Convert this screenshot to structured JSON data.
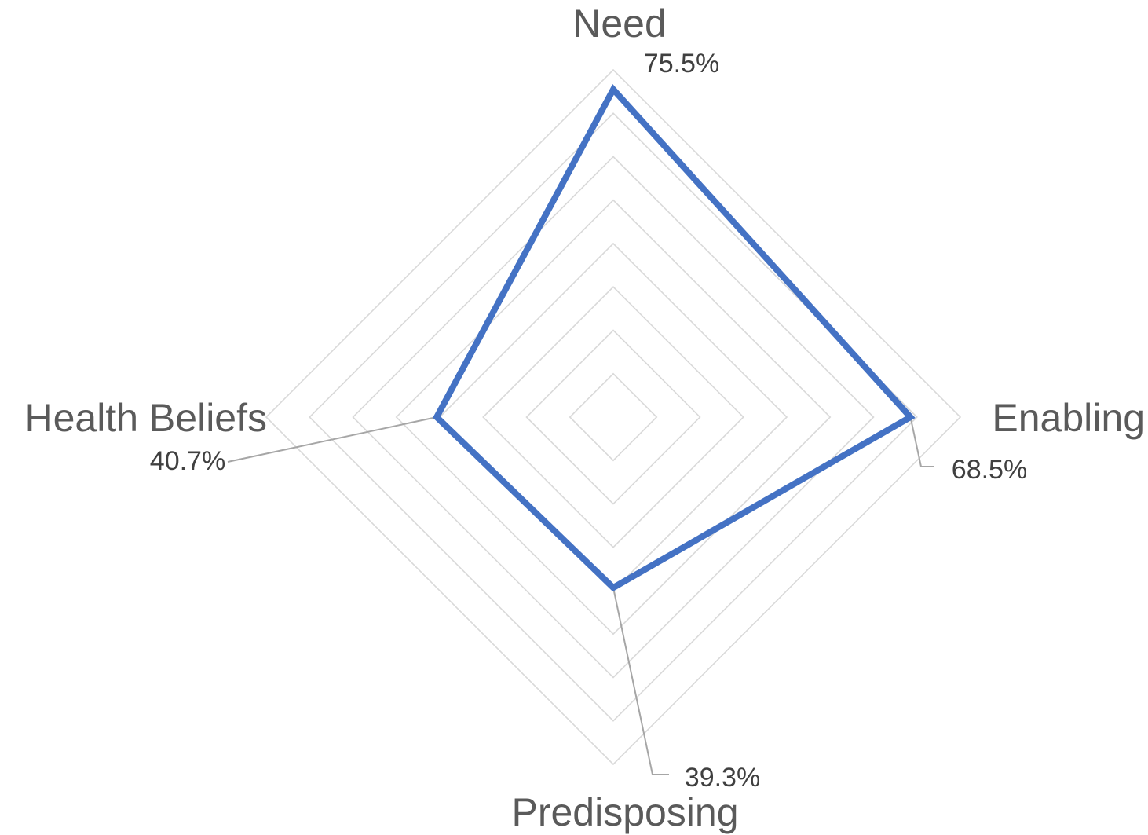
{
  "chart_data": {
    "type": "radar",
    "categories": [
      "Need",
      "Enabling",
      "Predisposing",
      "Health Beliefs"
    ],
    "values": [
      75.5,
      68.5,
      39.3,
      40.7
    ],
    "value_labels": [
      "75.5%",
      "68.5%",
      "39.3%",
      "40.7%"
    ],
    "rmax": 80,
    "grid_rings": 8,
    "grid": true,
    "series_color": "#4472C4",
    "grid_color": "#D9D9D9"
  }
}
